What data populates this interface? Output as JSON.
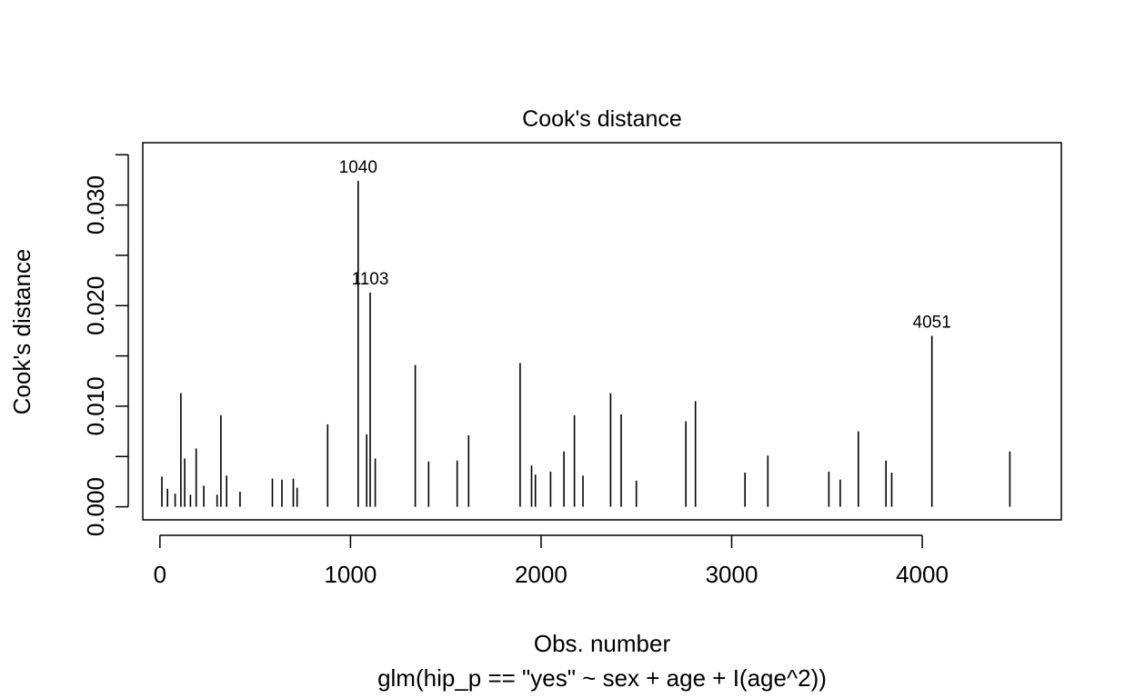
{
  "chart_data": {
    "type": "bar",
    "title": "Cook's distance",
    "xlabel": "Obs. number",
    "ylabel": "Cook's distance",
    "subtitle": "glm(hip_p == \"yes\" ~ sex + age + I(age^2))",
    "xlim": [
      -90,
      4730
    ],
    "ylim": [
      -0.0013,
      0.0362
    ],
    "x_ticks": [
      0,
      1000,
      2000,
      3000,
      4000
    ],
    "x_tick_labels": [
      "0",
      "1000",
      "2000",
      "3000",
      "4000"
    ],
    "y_ticks": [
      0.0,
      0.005,
      0.01,
      0.015,
      0.02,
      0.025,
      0.03,
      0.035
    ],
    "y_tick_labels": [
      "0.000",
      "",
      "0.010",
      "",
      "0.020",
      "",
      "0.030",
      ""
    ],
    "grid": false,
    "highlighted": [
      {
        "label": "1040",
        "x": 1040,
        "y": 0.0324
      },
      {
        "label": "1103",
        "x": 1103,
        "y": 0.0213
      },
      {
        "label": "4051",
        "x": 4051,
        "y": 0.017
      }
    ],
    "series": [
      {
        "x": [
          10,
          40,
          80,
          110,
          130,
          160,
          190,
          230,
          300,
          320,
          350,
          420,
          590,
          640,
          700,
          720,
          880,
          1040,
          1085,
          1103,
          1130,
          1340,
          1410,
          1560,
          1620,
          1890,
          1950,
          1970,
          2050,
          2120,
          2175,
          2220,
          2365,
          2420,
          2500,
          2760,
          2810,
          3070,
          3190,
          3510,
          3570,
          3665,
          3810,
          3840,
          4051,
          4460
        ],
        "values": [
          0.003,
          0.0018,
          0.0013,
          0.0113,
          0.0048,
          0.0012,
          0.0058,
          0.0021,
          0.0012,
          0.0091,
          0.0031,
          0.0015,
          0.0028,
          0.0027,
          0.0028,
          0.0019,
          0.0082,
          0.0324,
          0.0072,
          0.0213,
          0.0048,
          0.0141,
          0.0045,
          0.0046,
          0.0071,
          0.0143,
          0.0041,
          0.0032,
          0.0035,
          0.0055,
          0.0091,
          0.0031,
          0.0113,
          0.0092,
          0.0026,
          0.0085,
          0.0105,
          0.0034,
          0.0051,
          0.0035,
          0.0027,
          0.0075,
          0.0046,
          0.0034,
          0.017,
          0.0055
        ]
      }
    ]
  }
}
